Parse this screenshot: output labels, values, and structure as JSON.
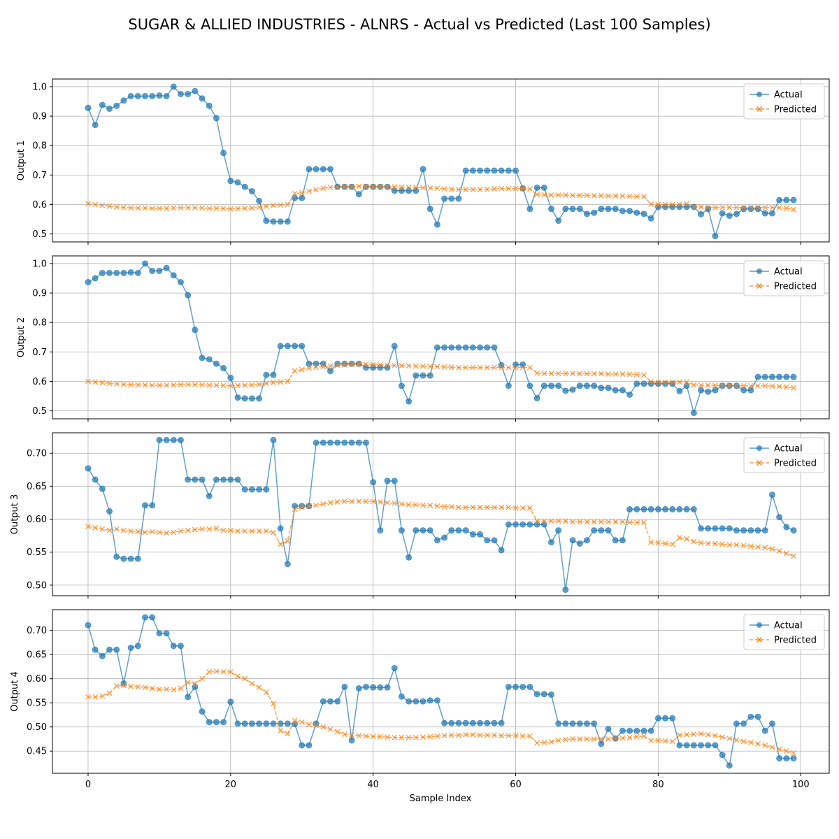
{
  "figure": {
    "title": "SUGAR & ALLIED INDUSTRIES - ALNRS - Actual vs Predicted (Last 100 Samples)",
    "xlabel": "Sample Index"
  },
  "colors": {
    "actual": "#1f77b4",
    "predicted": "#ff7f0e",
    "grid": "#b0b0b0"
  },
  "chart_data": [
    {
      "type": "line",
      "ylabel": "Output 1",
      "xlim": [
        -5,
        104
      ],
      "ylim": [
        0.473,
        1.026
      ],
      "x_ticks": [
        0,
        20,
        40,
        60,
        80,
        100
      ],
      "y_ticks": [
        0.5,
        0.6,
        0.7,
        0.8,
        0.9,
        1.0
      ],
      "y_tick_labels": [
        "0.5",
        "0.6",
        "0.7",
        "0.8",
        "0.9",
        "1.0"
      ],
      "grid": true,
      "legend": "top-right",
      "series": [
        {
          "name": "Actual",
          "marker": "circle",
          "values": [
            0.928,
            0.87,
            0.938,
            0.925,
            0.935,
            0.953,
            0.968,
            0.968,
            0.968,
            0.968,
            0.97,
            0.968,
            1.0,
            0.975,
            0.975,
            0.985,
            0.96,
            0.935,
            0.893,
            0.775,
            0.68,
            0.675,
            0.66,
            0.645,
            0.612,
            0.545,
            0.542,
            0.542,
            0.542,
            0.622,
            0.622,
            0.72,
            0.72,
            0.72,
            0.72,
            0.66,
            0.66,
            0.66,
            0.635,
            0.66,
            0.66,
            0.66,
            0.66,
            0.647,
            0.647,
            0.647,
            0.647,
            0.72,
            0.585,
            0.532,
            0.62,
            0.62,
            0.62,
            0.715,
            0.715,
            0.715,
            0.715,
            0.715,
            0.715,
            0.715,
            0.715,
            0.655,
            0.585,
            0.657,
            0.657,
            0.585,
            0.545,
            0.585,
            0.585,
            0.585,
            0.568,
            0.572,
            0.585,
            0.585,
            0.585,
            0.578,
            0.578,
            0.572,
            0.568,
            0.553,
            0.592,
            0.592,
            0.592,
            0.592,
            0.592,
            0.592,
            0.567,
            0.585,
            0.493,
            0.57,
            0.562,
            0.568,
            0.585,
            0.585,
            0.585,
            0.57,
            0.57,
            0.615,
            0.615,
            0.615
          ]
        },
        {
          "name": "Predicted",
          "marker": "x",
          "values": [
            0.603,
            0.6,
            0.597,
            0.594,
            0.592,
            0.59,
            0.589,
            0.588,
            0.588,
            0.587,
            0.587,
            0.587,
            0.588,
            0.589,
            0.589,
            0.589,
            0.588,
            0.587,
            0.587,
            0.586,
            0.585,
            0.586,
            0.587,
            0.588,
            0.59,
            0.594,
            0.597,
            0.598,
            0.6,
            0.637,
            0.64,
            0.645,
            0.65,
            0.655,
            0.658,
            0.66,
            0.66,
            0.661,
            0.662,
            0.662,
            0.661,
            0.661,
            0.66,
            0.66,
            0.659,
            0.658,
            0.658,
            0.657,
            0.656,
            0.655,
            0.653,
            0.652,
            0.651,
            0.651,
            0.651,
            0.651,
            0.652,
            0.653,
            0.654,
            0.654,
            0.654,
            0.654,
            0.653,
            0.634,
            0.633,
            0.632,
            0.632,
            0.632,
            0.631,
            0.631,
            0.631,
            0.63,
            0.63,
            0.629,
            0.629,
            0.629,
            0.628,
            0.627,
            0.627,
            0.601,
            0.6,
            0.6,
            0.6,
            0.601,
            0.602,
            0.593,
            0.592,
            0.591,
            0.59,
            0.59,
            0.59,
            0.59,
            0.59,
            0.59,
            0.59,
            0.59,
            0.59,
            0.589,
            0.587,
            0.583
          ]
        }
      ]
    },
    {
      "type": "line",
      "ylabel": "Output 2",
      "xlim": [
        -5,
        104
      ],
      "ylim": [
        0.473,
        1.026
      ],
      "x_ticks": [
        0,
        20,
        40,
        60,
        80,
        100
      ],
      "y_ticks": [
        0.5,
        0.6,
        0.7,
        0.8,
        0.9,
        1.0
      ],
      "y_tick_labels": [
        "0.5",
        "0.6",
        "0.7",
        "0.8",
        "0.9",
        "1.0"
      ],
      "grid": true,
      "legend": "top-right",
      "series": [
        {
          "name": "Actual",
          "marker": "circle",
          "values": [
            0.937,
            0.95,
            0.968,
            0.968,
            0.968,
            0.968,
            0.97,
            0.968,
            1.0,
            0.975,
            0.975,
            0.985,
            0.96,
            0.937,
            0.893,
            0.775,
            0.68,
            0.675,
            0.66,
            0.645,
            0.612,
            0.545,
            0.542,
            0.542,
            0.542,
            0.622,
            0.622,
            0.72,
            0.72,
            0.72,
            0.72,
            0.66,
            0.66,
            0.66,
            0.635,
            0.66,
            0.66,
            0.66,
            0.66,
            0.647,
            0.647,
            0.647,
            0.647,
            0.72,
            0.585,
            0.532,
            0.62,
            0.62,
            0.62,
            0.715,
            0.715,
            0.715,
            0.715,
            0.715,
            0.715,
            0.715,
            0.715,
            0.715,
            0.655,
            0.585,
            0.657,
            0.657,
            0.585,
            0.543,
            0.585,
            0.585,
            0.585,
            0.568,
            0.572,
            0.585,
            0.585,
            0.585,
            0.578,
            0.578,
            0.57,
            0.57,
            0.555,
            0.592,
            0.592,
            0.592,
            0.592,
            0.592,
            0.592,
            0.567,
            0.585,
            0.493,
            0.57,
            0.565,
            0.57,
            0.585,
            0.585,
            0.585,
            0.57,
            0.57,
            0.615,
            0.615,
            0.615,
            0.615,
            0.615,
            0.615
          ]
        },
        {
          "name": "Predicted",
          "marker": "x",
          "values": [
            0.6,
            0.598,
            0.596,
            0.593,
            0.592,
            0.59,
            0.589,
            0.588,
            0.588,
            0.587,
            0.587,
            0.587,
            0.588,
            0.589,
            0.589,
            0.589,
            0.588,
            0.587,
            0.587,
            0.586,
            0.585,
            0.586,
            0.587,
            0.588,
            0.59,
            0.593,
            0.596,
            0.598,
            0.6,
            0.636,
            0.64,
            0.645,
            0.648,
            0.65,
            0.652,
            0.655,
            0.656,
            0.657,
            0.658,
            0.658,
            0.657,
            0.656,
            0.655,
            0.654,
            0.653,
            0.653,
            0.652,
            0.652,
            0.651,
            0.65,
            0.649,
            0.648,
            0.647,
            0.647,
            0.647,
            0.647,
            0.647,
            0.647,
            0.647,
            0.647,
            0.647,
            0.647,
            0.647,
            0.628,
            0.627,
            0.627,
            0.627,
            0.627,
            0.627,
            0.626,
            0.626,
            0.626,
            0.626,
            0.625,
            0.625,
            0.625,
            0.624,
            0.623,
            0.622,
            0.598,
            0.597,
            0.597,
            0.597,
            0.598,
            0.598,
            0.588,
            0.587,
            0.587,
            0.586,
            0.586,
            0.586,
            0.585,
            0.585,
            0.585,
            0.585,
            0.585,
            0.584,
            0.583,
            0.581,
            0.578
          ]
        }
      ]
    },
    {
      "type": "line",
      "ylabel": "Output 3",
      "xlim": [
        -5,
        104
      ],
      "ylim": [
        0.484,
        0.731
      ],
      "x_ticks": [
        0,
        20,
        40,
        60,
        80,
        100
      ],
      "y_ticks": [
        0.5,
        0.55,
        0.6,
        0.65,
        0.7
      ],
      "y_tick_labels": [
        "0.50",
        "0.55",
        "0.60",
        "0.65",
        "0.70"
      ],
      "grid": true,
      "legend": "top-right",
      "series": [
        {
          "name": "Actual",
          "marker": "circle",
          "values": [
            0.677,
            0.66,
            0.646,
            0.612,
            0.543,
            0.54,
            0.54,
            0.54,
            0.621,
            0.621,
            0.72,
            0.72,
            0.72,
            0.72,
            0.66,
            0.66,
            0.66,
            0.635,
            0.66,
            0.66,
            0.66,
            0.66,
            0.645,
            0.645,
            0.645,
            0.645,
            0.72,
            0.586,
            0.532,
            0.62,
            0.62,
            0.62,
            0.716,
            0.716,
            0.716,
            0.716,
            0.716,
            0.716,
            0.716,
            0.716,
            0.656,
            0.583,
            0.658,
            0.658,
            0.583,
            0.542,
            0.583,
            0.583,
            0.583,
            0.568,
            0.572,
            0.583,
            0.583,
            0.583,
            0.577,
            0.577,
            0.568,
            0.568,
            0.553,
            0.592,
            0.592,
            0.592,
            0.592,
            0.592,
            0.592,
            0.565,
            0.583,
            0.493,
            0.568,
            0.563,
            0.568,
            0.583,
            0.583,
            0.583,
            0.568,
            0.568,
            0.615,
            0.615,
            0.615,
            0.615,
            0.615,
            0.615,
            0.615,
            0.615,
            0.615,
            0.615,
            0.586,
            0.586,
            0.586,
            0.586,
            0.586,
            0.583,
            0.583,
            0.583,
            0.583,
            0.583,
            0.637,
            0.603,
            0.588,
            0.583
          ]
        },
        {
          "name": "Predicted",
          "marker": "x",
          "values": [
            0.589,
            0.587,
            0.585,
            0.583,
            0.585,
            0.583,
            0.582,
            0.581,
            0.58,
            0.581,
            0.58,
            0.579,
            0.58,
            0.582,
            0.583,
            0.584,
            0.585,
            0.585,
            0.586,
            0.583,
            0.583,
            0.582,
            0.582,
            0.582,
            0.582,
            0.582,
            0.58,
            0.562,
            0.567,
            0.615,
            0.618,
            0.62,
            0.621,
            0.623,
            0.625,
            0.626,
            0.627,
            0.627,
            0.627,
            0.627,
            0.627,
            0.626,
            0.625,
            0.624,
            0.623,
            0.622,
            0.622,
            0.621,
            0.621,
            0.62,
            0.619,
            0.619,
            0.618,
            0.618,
            0.618,
            0.618,
            0.618,
            0.618,
            0.618,
            0.618,
            0.617,
            0.617,
            0.617,
            0.597,
            0.597,
            0.597,
            0.597,
            0.597,
            0.596,
            0.596,
            0.596,
            0.596,
            0.596,
            0.596,
            0.596,
            0.596,
            0.595,
            0.595,
            0.595,
            0.565,
            0.564,
            0.563,
            0.562,
            0.572,
            0.57,
            0.566,
            0.564,
            0.563,
            0.563,
            0.562,
            0.561,
            0.561,
            0.56,
            0.559,
            0.558,
            0.557,
            0.555,
            0.552,
            0.548,
            0.544
          ]
        }
      ]
    },
    {
      "type": "line",
      "ylabel": "Output 4",
      "xlim": [
        -5,
        104
      ],
      "ylim": [
        0.404,
        0.743
      ],
      "x_ticks": [
        0,
        20,
        40,
        60,
        80,
        100
      ],
      "y_ticks": [
        0.45,
        0.5,
        0.55,
        0.6,
        0.65,
        0.7
      ],
      "y_tick_labels": [
        "0.45",
        "0.50",
        "0.55",
        "0.60",
        "0.65",
        "0.70"
      ],
      "grid": true,
      "legend": "top-right",
      "series": [
        {
          "name": "Actual",
          "marker": "circle",
          "values": [
            0.711,
            0.66,
            0.647,
            0.66,
            0.66,
            0.59,
            0.664,
            0.668,
            0.727,
            0.727,
            0.694,
            0.694,
            0.668,
            0.668,
            0.562,
            0.583,
            0.532,
            0.51,
            0.51,
            0.51,
            0.552,
            0.507,
            0.507,
            0.507,
            0.507,
            0.507,
            0.507,
            0.507,
            0.507,
            0.506,
            0.462,
            0.462,
            0.507,
            0.553,
            0.553,
            0.553,
            0.583,
            0.472,
            0.58,
            0.583,
            0.582,
            0.582,
            0.582,
            0.622,
            0.563,
            0.553,
            0.553,
            0.553,
            0.555,
            0.555,
            0.508,
            0.508,
            0.508,
            0.508,
            0.508,
            0.508,
            0.508,
            0.508,
            0.508,
            0.583,
            0.583,
            0.583,
            0.583,
            0.568,
            0.568,
            0.567,
            0.507,
            0.507,
            0.507,
            0.507,
            0.507,
            0.507,
            0.465,
            0.496,
            0.476,
            0.492,
            0.492,
            0.492,
            0.492,
            0.492,
            0.518,
            0.518,
            0.518,
            0.462,
            0.462,
            0.462,
            0.462,
            0.462,
            0.462,
            0.442,
            0.42,
            0.507,
            0.507,
            0.521,
            0.521,
            0.492,
            0.507,
            0.435,
            0.435,
            0.435
          ]
        },
        {
          "name": "Predicted",
          "marker": "x",
          "values": [
            0.562,
            0.562,
            0.564,
            0.57,
            0.585,
            0.586,
            0.584,
            0.583,
            0.582,
            0.58,
            0.578,
            0.578,
            0.577,
            0.58,
            0.592,
            0.59,
            0.6,
            0.614,
            0.615,
            0.614,
            0.614,
            0.605,
            0.6,
            0.59,
            0.582,
            0.572,
            0.548,
            0.492,
            0.486,
            0.513,
            0.51,
            0.505,
            0.503,
            0.5,
            0.495,
            0.49,
            0.485,
            0.483,
            0.482,
            0.481,
            0.48,
            0.48,
            0.479,
            0.478,
            0.478,
            0.478,
            0.478,
            0.479,
            0.48,
            0.481,
            0.482,
            0.483,
            0.483,
            0.484,
            0.484,
            0.483,
            0.483,
            0.483,
            0.482,
            0.482,
            0.482,
            0.481,
            0.481,
            0.467,
            0.468,
            0.469,
            0.472,
            0.474,
            0.475,
            0.475,
            0.475,
            0.475,
            0.475,
            0.475,
            0.476,
            0.477,
            0.478,
            0.48,
            0.481,
            0.472,
            0.472,
            0.471,
            0.47,
            0.483,
            0.484,
            0.485,
            0.486,
            0.484,
            0.482,
            0.479,
            0.476,
            0.473,
            0.47,
            0.468,
            0.465,
            0.462,
            0.458,
            0.454,
            0.45,
            0.446
          ]
        }
      ]
    }
  ]
}
